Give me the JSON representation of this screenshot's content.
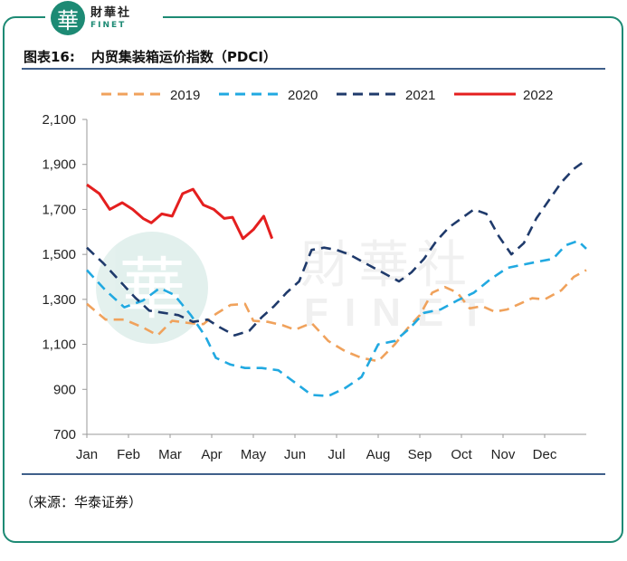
{
  "brand": {
    "seal_char": "華",
    "name_cn": "財華社",
    "name_en": "FINET"
  },
  "figure": {
    "number": "图表16:",
    "title": "内贸集装箱运价指数（PDCI）"
  },
  "source": "（来源：华泰证券）",
  "watermark": {
    "cn": "財華社",
    "en": "FINET",
    "seal_char": "華"
  },
  "chart_data": {
    "type": "line",
    "title": "内贸集装箱运价指数（PDCI）",
    "xlabel": "",
    "ylabel": "",
    "ylim": [
      700,
      2100
    ],
    "yticks": [
      700,
      900,
      1100,
      1300,
      1500,
      1700,
      1900,
      2100
    ],
    "ytick_labels": [
      "700",
      "900",
      "1,100",
      "1,300",
      "1,500",
      "1,700",
      "1,900",
      "2,100"
    ],
    "month_labels": [
      "Jan",
      "Feb",
      "Mar",
      "Apr",
      "May",
      "Jun",
      "Jul",
      "Aug",
      "Sep",
      "Oct",
      "Nov",
      "Dec"
    ],
    "x_range": [
      0,
      12
    ],
    "series": [
      {
        "name": "2019",
        "color": "#f0a25c",
        "dash": "dashed",
        "x": [
          0,
          0.45,
          0.9,
          1.35,
          1.7,
          2.05,
          2.45,
          2.8,
          3.1,
          3.45,
          3.8,
          4.0,
          4.35,
          4.7,
          5.0,
          5.4,
          5.8,
          6.2,
          6.6,
          7.0,
          7.4,
          7.7,
          8.0,
          8.3,
          8.6,
          8.9,
          9.2,
          9.5,
          9.8,
          10.1,
          10.4,
          10.7,
          11.0,
          11.4,
          11.7,
          12.0
        ],
        "y": [
          1280,
          1210,
          1210,
          1175,
          1140,
          1205,
          1195,
          1190,
          1235,
          1275,
          1280,
          1205,
          1200,
          1185,
          1165,
          1195,
          1115,
          1070,
          1040,
          1025,
          1100,
          1170,
          1230,
          1330,
          1355,
          1330,
          1260,
          1270,
          1245,
          1255,
          1280,
          1305,
          1300,
          1340,
          1400,
          1430
        ]
      },
      {
        "name": "2020",
        "color": "#21a9e1",
        "dash": "dashed",
        "x": [
          0,
          0.45,
          0.9,
          1.35,
          1.75,
          2.1,
          2.5,
          2.85,
          3.1,
          3.45,
          3.8,
          4.2,
          4.6,
          5.0,
          5.4,
          5.8,
          6.2,
          6.6,
          7.0,
          7.4,
          7.75,
          8.1,
          8.5,
          8.9,
          9.3,
          9.7,
          10.1,
          10.5,
          10.9,
          11.2,
          11.5,
          11.8,
          12.0
        ],
        "y": [
          1430,
          1340,
          1265,
          1295,
          1350,
          1320,
          1230,
          1135,
          1040,
          1010,
          995,
          995,
          985,
          930,
          875,
          870,
          905,
          955,
          1100,
          1115,
          1170,
          1240,
          1255,
          1295,
          1330,
          1390,
          1440,
          1455,
          1470,
          1480,
          1540,
          1560,
          1525
        ]
      },
      {
        "name": "2021",
        "color": "#1f3a6b",
        "dash": "dashed",
        "x": [
          0,
          0.4,
          0.8,
          1.15,
          1.5,
          1.85,
          2.2,
          2.55,
          2.9,
          3.2,
          3.55,
          3.9,
          4.2,
          4.5,
          4.8,
          5.1,
          5.4,
          5.7,
          6.0,
          6.3,
          6.6,
          6.9,
          7.2,
          7.5,
          7.8,
          8.1,
          8.4,
          8.7,
          9.0,
          9.3,
          9.6,
          9.9,
          10.2,
          10.5,
          10.8,
          11.1,
          11.4,
          11.7,
          12.0
        ],
        "y": [
          1530,
          1460,
          1380,
          1310,
          1250,
          1240,
          1230,
          1200,
          1210,
          1175,
          1140,
          1160,
          1220,
          1270,
          1330,
          1380,
          1520,
          1530,
          1520,
          1500,
          1470,
          1440,
          1410,
          1380,
          1420,
          1480,
          1560,
          1620,
          1660,
          1700,
          1680,
          1580,
          1500,
          1550,
          1660,
          1740,
          1820,
          1880,
          1920
        ]
      },
      {
        "name": "2022",
        "color": "#e41f1f",
        "dash": "solid",
        "x": [
          0,
          0.3,
          0.55,
          0.85,
          1.1,
          1.35,
          1.55,
          1.8,
          2.05,
          2.3,
          2.55,
          2.8,
          3.05,
          3.3,
          3.5,
          3.75,
          4.0,
          4.25,
          4.45
        ],
        "y": [
          1810,
          1770,
          1700,
          1730,
          1700,
          1660,
          1640,
          1680,
          1670,
          1770,
          1790,
          1720,
          1700,
          1660,
          1665,
          1570,
          1610,
          1670,
          1570
        ]
      }
    ]
  }
}
